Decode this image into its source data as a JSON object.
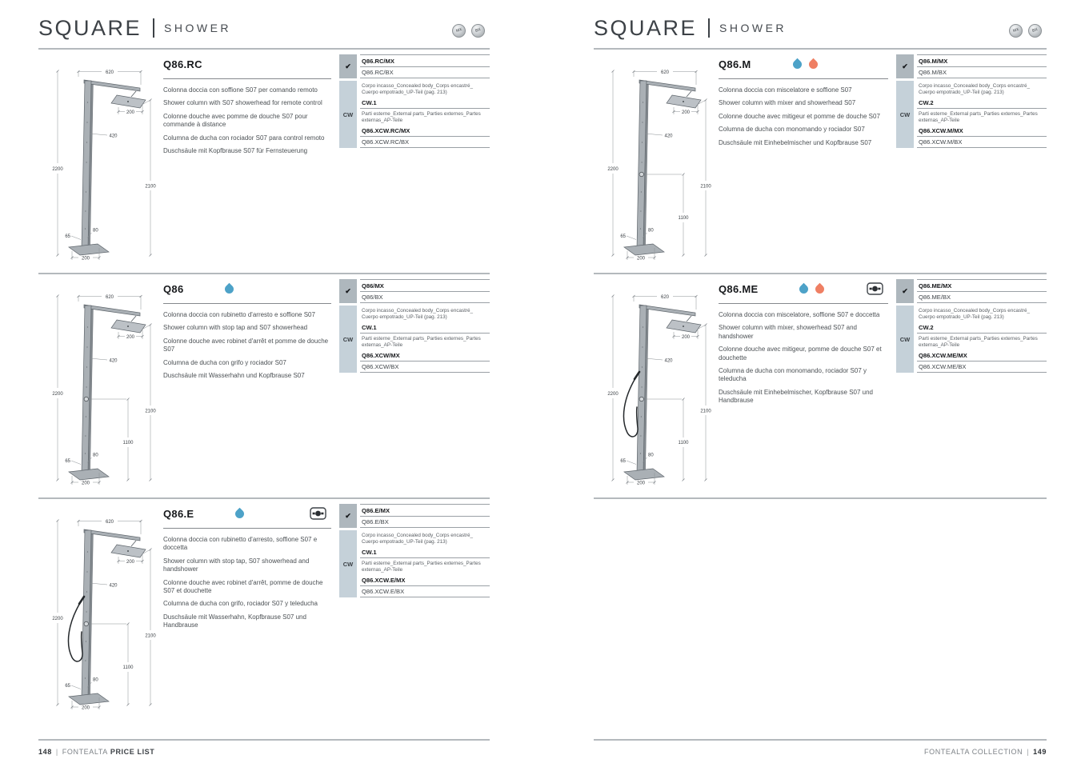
{
  "colors": {
    "cold_drop": "#4da2c8",
    "hot_drop": "#ef7f63",
    "rule": "#b4b9bd",
    "check_cell_bg": "#aeb7bd",
    "cw_cell_bg": "#c5d1d9"
  },
  "shared": {
    "check_symbol": "✔",
    "cw_label": "CW",
    "concealed_body_text": "Corpo incasso_Concealed body_Corps encastré_ Cuerpo empotrado_UP-Teil (pag. 213)",
    "external_parts_text": "Parti esterne_External parts_Parties externes_Partes externas_AP-Teile"
  },
  "page_left": {
    "header": {
      "title": "SQUARE",
      "subtitle": "SHOWER",
      "finish_icons": [
        "MX",
        "BX"
      ]
    },
    "products": [
      {
        "code": "Q86.RC",
        "icons": {
          "cold": false,
          "hot": false,
          "handshower": false
        },
        "descriptions": {
          "it": "Colonna doccia con soffione S07 per comando remoto",
          "en": "Shower column with S07 showerhead for remote control",
          "fr": "Colonne douche avec pomme de douche S07 pour commande à distance",
          "es": "Columna de ducha con rociador S07 para control remoto",
          "de": "Duschsäule mit Kopfbrause S07 für Fernsteuerung"
        },
        "order_codes": {
          "mx": "Q86.RC/MX",
          "bx": "Q86.RC/BX"
        },
        "cw": {
          "body_code": "CW.1",
          "external_mx": "Q86.XCW.RC/MX",
          "external_bx": "Q86.XCW.RC/BX"
        },
        "drawing": {
          "dims": {
            "top_width": "620",
            "head_depth": "200",
            "arm": "420",
            "total_height": "2200",
            "head_height": "2100",
            "base_side": "65",
            "post_side": "80",
            "base_width": "200"
          },
          "features": {
            "valve": false,
            "hose": false
          }
        }
      },
      {
        "code": "Q86",
        "icons": {
          "cold": true,
          "hot": false,
          "handshower": false
        },
        "descriptions": {
          "it": "Colonna doccia con rubinetto d'arresto e soffione S07",
          "en": "Shower column with stop tap and S07 showerhead",
          "fr": "Colonne douche avec robinet d'arrêt et pomme de douche S07",
          "es": "Columna de ducha con grifo y rociador S07",
          "de": "Duschsäule mit Wasserhahn und Kopfbrause S07"
        },
        "order_codes": {
          "mx": "Q86/MX",
          "bx": "Q86/BX"
        },
        "cw": {
          "body_code": "CW.1",
          "external_mx": "Q86.XCW/MX",
          "external_bx": "Q86.XCW/BX"
        },
        "drawing": {
          "dims": {
            "top_width": "620",
            "head_depth": "200",
            "arm": "420",
            "total_height": "2200",
            "head_height": "2100",
            "tap_height": "1100",
            "base_side": "65",
            "post_side": "80",
            "base_width": "200"
          },
          "features": {
            "valve": true,
            "hose": false
          }
        }
      },
      {
        "code": "Q86.E",
        "icons": {
          "cold": true,
          "hot": false,
          "handshower": true
        },
        "descriptions": {
          "it": "Colonna doccia con rubinetto d'arresto, soffione S07 e doccetta",
          "en": "Shower column with stop tap, S07 showerhead and handshower",
          "fr": "Colonne douche avec robinet d'arrêt, pomme de douche S07 et douchette",
          "es": "Columna de ducha con grifo, rociador S07 y teleducha",
          "de": "Duschsäule mit Wasserhahn, Kopfbrause S07 und Handbrause"
        },
        "order_codes": {
          "mx": "Q86.E/MX",
          "bx": "Q86.E/BX"
        },
        "cw": {
          "body_code": "CW.1",
          "external_mx": "Q86.XCW.E/MX",
          "external_bx": "Q86.XCW.E/BX"
        },
        "drawing": {
          "dims": {
            "top_width": "620",
            "head_depth": "200",
            "arm": "420",
            "total_height": "2200",
            "head_height": "2100",
            "tap_height": "1100",
            "base_side": "65",
            "post_side": "80",
            "base_width": "200"
          },
          "features": {
            "valve": true,
            "hose": true
          }
        }
      }
    ],
    "footer": {
      "page_number": "148",
      "brand": "FONTEALTA",
      "label": "PRICE LIST"
    }
  },
  "page_right": {
    "header": {
      "title": "SQUARE",
      "subtitle": "SHOWER",
      "finish_icons": [
        "MX",
        "BX"
      ]
    },
    "products": [
      {
        "code": "Q86.M",
        "icons": {
          "cold": true,
          "hot": true,
          "handshower": false
        },
        "descriptions": {
          "it": "Colonna doccia con miscelatore e soffione S07",
          "en": "Shower column with mixer and showerhead S07",
          "fr": "Colonne douche avec mitigeur et pomme de douche S07",
          "es": "Columna de ducha con monomando y rociador S07",
          "de": "Duschsäule mit Einhebelmischer und Kopfbrause S07"
        },
        "order_codes": {
          "mx": "Q86.M/MX",
          "bx": "Q86.M/BX"
        },
        "cw": {
          "body_code": "CW.2",
          "external_mx": "Q86.XCW.M/MX",
          "external_bx": "Q86.XCW.M/BX"
        },
        "drawing": {
          "dims": {
            "top_width": "620",
            "head_depth": "200",
            "arm": "420",
            "total_height": "2200",
            "head_height": "2100",
            "tap_height": "1100",
            "base_side": "65",
            "post_side": "80",
            "base_width": "200"
          },
          "features": {
            "valve": true,
            "hose": false
          }
        }
      },
      {
        "code": "Q86.ME",
        "icons": {
          "cold": true,
          "hot": true,
          "handshower": true
        },
        "descriptions": {
          "it": "Colonna doccia con miscelatore, soffione S07 e doccetta",
          "en": "Shower column with mixer, showerhead S07 and handshower",
          "fr": "Colonne douche avec mitigeur, pomme de douche S07 et douchette",
          "es": "Columna de ducha con monomando, rociador S07 y teleducha",
          "de": "Duschsäule mit Einhebelmischer, Kopfbrause S07 und Handbrause"
        },
        "order_codes": {
          "mx": "Q86.ME/MX",
          "bx": "Q86.ME/BX"
        },
        "cw": {
          "body_code": "CW.2",
          "external_mx": "Q86.XCW.ME/MX",
          "external_bx": "Q86.XCW.ME/BX"
        },
        "drawing": {
          "dims": {
            "top_width": "620",
            "head_depth": "200",
            "arm": "420",
            "total_height": "2200",
            "head_height": "2100",
            "tap_height": "1100",
            "base_side": "65",
            "post_side": "80",
            "base_width": "200"
          },
          "features": {
            "valve": true,
            "hose": true
          }
        }
      }
    ],
    "footer": {
      "brand": "FONTEALTA COLLECTION",
      "page_number": "149"
    }
  }
}
